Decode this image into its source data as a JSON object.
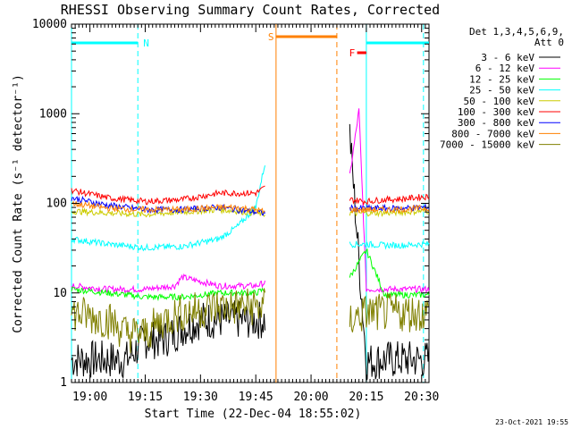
{
  "chart_data": {
    "type": "line",
    "title": "RHESSI Observing Summary Count Rates, Corrected",
    "xlabel": "Start Time (22-Dec-04 18:55:02)",
    "ylabel": "Corrected Count Rate (s⁻¹ detector⁻¹)",
    "yscale": "log",
    "ylim": [
      1,
      10000
    ],
    "xlim": [
      "18:55",
      "20:32"
    ],
    "x_tick_labels": [
      "19:00",
      "19:15",
      "19:30",
      "19:45",
      "20:00",
      "20:15",
      "20:30"
    ],
    "x_tick_minutes": [
      5,
      20,
      35,
      50,
      65,
      80,
      95
    ],
    "y_tick_labels": [
      "1",
      "10",
      "100",
      "1000",
      "10000"
    ],
    "y_tick_values": [
      1,
      10,
      100,
      1000,
      10000
    ],
    "legend_header": [
      "Det 1,3,4,5,6,9,",
      "Att 0"
    ],
    "legend_position": "right",
    "footer": "23-Oct-2021 19:55",
    "x_unit": "minutes after 18:55:02",
    "data_gap": {
      "start": 53.5,
      "end": 75.5
    },
    "series": [
      {
        "name": "3 - 6 keV",
        "color": "#000000",
        "x": [
          0,
          10,
          15,
          20,
          25,
          30,
          35,
          40,
          45,
          50,
          52.5,
          75.5,
          80,
          85,
          90,
          95
        ],
        "y": [
          1.8,
          1.8,
          1.8,
          3,
          3,
          4,
          5,
          5,
          5,
          5,
          5,
          600,
          1.7,
          1.8,
          1.8,
          1.8
        ]
      },
      {
        "name": "6 - 12 keV",
        "color": "#ff00ff",
        "x": [
          0,
          10,
          20,
          28,
          30,
          40,
          50,
          52.5,
          75.5,
          78,
          80,
          85,
          90,
          95
        ],
        "y": [
          12,
          11,
          11,
          12,
          15,
          12,
          12,
          13,
          200,
          1100,
          11,
          11,
          11,
          11
        ]
      },
      {
        "name": "12 - 25 keV",
        "color": "#00ff00",
        "x": [
          0,
          10,
          20,
          30,
          40,
          45,
          50,
          52.5,
          75.5,
          80,
          85,
          90,
          95
        ],
        "y": [
          11,
          10,
          9,
          9,
          10,
          10,
          10,
          11,
          15,
          30,
          9.5,
          9.5,
          9.5
        ]
      },
      {
        "name": "25 - 50 keV",
        "color": "#00ffff",
        "x": [
          0,
          10,
          20,
          30,
          40,
          45,
          50,
          52.5,
          75.5,
          80,
          85,
          90,
          95
        ],
        "y": [
          40,
          35,
          32,
          33,
          40,
          55,
          90,
          280,
          35,
          35,
          34,
          34,
          35
        ]
      },
      {
        "name": "50 - 100 keV",
        "color": "#cccc00",
        "x": [
          0,
          10,
          20,
          30,
          40,
          45,
          50,
          52.5,
          75.5,
          80,
          85,
          90,
          95
        ],
        "y": [
          82,
          78,
          75,
          80,
          85,
          82,
          78,
          75,
          78,
          78,
          78,
          80,
          82
        ]
      },
      {
        "name": "100 - 300 keV",
        "color": "#ff0000",
        "x": [
          0,
          10,
          20,
          30,
          40,
          45,
          50,
          52.5,
          75.5,
          80,
          85,
          90,
          95
        ],
        "y": [
          140,
          115,
          105,
          110,
          130,
          130,
          130,
          150,
          110,
          105,
          110,
          112,
          118
        ]
      },
      {
        "name": "300 - 800 keV",
        "color": "#0000ff",
        "x": [
          0,
          10,
          20,
          30,
          40,
          45,
          50,
          52.5,
          75.5,
          80,
          85,
          90,
          95
        ],
        "y": [
          115,
          95,
          85,
          85,
          90,
          85,
          80,
          77,
          88,
          88,
          88,
          88,
          90
        ]
      },
      {
        "name": "800 - 7000 keV",
        "color": "#ff8000",
        "x": [
          0,
          10,
          20,
          30,
          40,
          45,
          50,
          52.5,
          75.5,
          80,
          85,
          90,
          95
        ],
        "y": [
          100,
          88,
          85,
          85,
          90,
          90,
          85,
          80,
          85,
          85,
          85,
          86,
          88
        ]
      },
      {
        "name": "7000 - 15000 keV",
        "color": "#808000",
        "x": [
          0,
          10,
          15,
          20,
          25,
          30,
          40,
          45,
          50,
          52.5,
          75.5,
          80,
          85,
          90,
          95
        ],
        "y": [
          6,
          5,
          3.5,
          3.5,
          5,
          6,
          7,
          7,
          7,
          7,
          5,
          6,
          6,
          6,
          6
        ]
      }
    ],
    "annotations": [
      {
        "label": "N",
        "color": "#00ffff",
        "kind": "night",
        "bars": [
          {
            "x0": 0,
            "x1": 18
          },
          {
            "x0": 80,
            "x1": 97
          }
        ],
        "dashed_x": [
          18,
          95.5
        ],
        "solid_x": [
          0,
          80
        ]
      },
      {
        "label": "S",
        "color": "#ff8000",
        "kind": "saa",
        "bars": [
          {
            "x0": 55.5,
            "x1": 72
          }
        ],
        "solid_x": [
          55.5
        ],
        "dashed_x": [
          72
        ]
      },
      {
        "label": "F",
        "color": "#ff0000",
        "kind": "flare",
        "bars": [
          {
            "x0": 77.5,
            "x1": 80
          }
        ]
      }
    ]
  }
}
